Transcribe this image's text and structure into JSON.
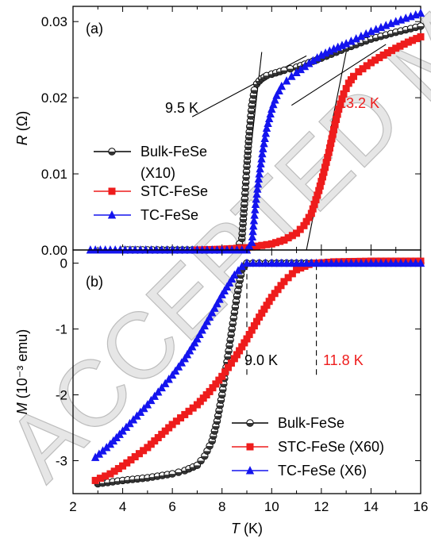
{
  "chart_data": [
    {
      "panel": "(a)",
      "type": "scatter",
      "xlabel": "T (K)",
      "ylabel": "R (Ω)",
      "xlim": [
        2,
        16
      ],
      "ylim": [
        0,
        0.032
      ],
      "xticks": [
        2,
        4,
        6,
        8,
        10,
        12,
        14,
        16
      ],
      "yticks": [
        0.0,
        0.01,
        0.02,
        0.03
      ],
      "ytick_labels": [
        "0.00",
        "0.01",
        "0.02",
        "0.03"
      ],
      "legend_position": "middle-left",
      "series": [
        {
          "name": "Bulk-FeSe",
          "name_line2": "(X10)",
          "color": "#000000",
          "marker": "circle-half",
          "x": [
            4.0,
            5.0,
            6.0,
            7.0,
            8.0,
            8.6,
            8.8,
            8.9,
            9.0,
            9.1,
            9.2,
            9.3,
            9.4,
            9.5,
            9.6,
            9.7,
            9.8,
            10.0,
            10.5,
            11.0,
            11.5,
            12.0,
            13.0,
            14.0,
            15.0,
            16.0
          ],
          "y": [
            0.0,
            0.0,
            0.0,
            0.0,
            0.0,
            0.0001,
            0.0015,
            0.006,
            0.011,
            0.0155,
            0.019,
            0.021,
            0.0218,
            0.0222,
            0.0225,
            0.0227,
            0.0229,
            0.0231,
            0.0236,
            0.024,
            0.0246,
            0.0252,
            0.0265,
            0.0277,
            0.0286,
            0.0294
          ]
        },
        {
          "name": "STC-FeSe",
          "color": "#ee1c1c",
          "marker": "square",
          "x": [
            7.0,
            8.0,
            9.0,
            10.0,
            10.5,
            11.0,
            11.3,
            11.6,
            11.9,
            12.1,
            12.3,
            12.5,
            12.7,
            12.9,
            13.1,
            13.3,
            13.5,
            14.0,
            14.5,
            15.0,
            15.5,
            16.0
          ],
          "y": [
            0.0,
            0.0001,
            0.0003,
            0.0008,
            0.0013,
            0.0022,
            0.0032,
            0.0048,
            0.0078,
            0.0102,
            0.0128,
            0.0158,
            0.0185,
            0.0205,
            0.0219,
            0.0228,
            0.0234,
            0.0246,
            0.0256,
            0.0265,
            0.0273,
            0.028
          ]
        },
        {
          "name": "TC-FeSe",
          "color": "#1414ee",
          "marker": "triangle",
          "x": [
            2.7,
            3.5,
            4.5,
            6.0,
            7.0,
            8.0,
            9.0,
            9.2,
            9.35,
            9.5,
            9.65,
            9.8,
            10.0,
            10.2,
            10.4,
            10.6,
            10.8,
            11.0,
            11.5,
            12.0,
            12.5,
            13.0,
            14.0,
            15.0,
            16.0
          ],
          "y": [
            0.0,
            0.0,
            0.0,
            0.0,
            0.0,
            0.0,
            0.0,
            0.001,
            0.006,
            0.01,
            0.0133,
            0.016,
            0.0185,
            0.0203,
            0.0215,
            0.0222,
            0.0228,
            0.0233,
            0.0245,
            0.0256,
            0.0264,
            0.0271,
            0.0287,
            0.03,
            0.0311
          ]
        }
      ],
      "annotations": [
        {
          "text": "9.5 K",
          "color": "#000000"
        },
        {
          "text": "13.2 K",
          "color": "#ee1c1c"
        }
      ]
    },
    {
      "panel": "(b)",
      "type": "scatter",
      "xlabel": "T (K)",
      "ylabel": "M (10⁻³ emu)",
      "xlim": [
        2,
        16
      ],
      "ylim": [
        -3.5,
        0.2
      ],
      "xticks": [
        2,
        4,
        6,
        8,
        10,
        12,
        14,
        16
      ],
      "yticks": [
        0,
        -1,
        -2,
        -3
      ],
      "ytick_labels": [
        "0",
        "-1",
        "-2",
        "-3"
      ],
      "legend_position": "bottom-right",
      "series": [
        {
          "name": "Bulk-FeSe",
          "color": "#000000",
          "marker": "circle-half",
          "x": [
            3.0,
            4.0,
            5.0,
            6.0,
            6.5,
            7.0,
            7.3,
            7.6,
            7.8,
            8.0,
            8.2,
            8.4,
            8.6,
            8.8,
            9.0,
            9.5,
            10.0,
            12.0,
            14.0,
            16.0
          ],
          "y": [
            -3.35,
            -3.3,
            -3.26,
            -3.2,
            -3.15,
            -3.07,
            -2.93,
            -2.7,
            -2.4,
            -2.0,
            -1.5,
            -1.0,
            -0.5,
            -0.1,
            0.0,
            0.0,
            0.0,
            0.0,
            0.0,
            0.0
          ]
        },
        {
          "name": "STC-FeSe (X60)",
          "color": "#ee1c1c",
          "marker": "square",
          "x": [
            2.9,
            3.5,
            4.0,
            5.0,
            6.0,
            7.0,
            7.5,
            8.0,
            8.5,
            9.0,
            9.5,
            10.0,
            10.5,
            11.0,
            11.5,
            11.8,
            12.5,
            14.0,
            16.0
          ],
          "y": [
            -3.3,
            -3.2,
            -3.08,
            -2.8,
            -2.45,
            -2.15,
            -1.95,
            -1.72,
            -1.45,
            -1.15,
            -0.82,
            -0.52,
            -0.28,
            -0.1,
            -0.02,
            0.0,
            0.02,
            0.03,
            0.03
          ]
        },
        {
          "name": "TC-FeSe (X6)",
          "color": "#1414ee",
          "marker": "triangle",
          "x": [
            2.9,
            3.5,
            4.0,
            5.0,
            6.0,
            6.5,
            7.0,
            7.5,
            8.0,
            8.5,
            8.8,
            9.0,
            9.5,
            10.0,
            11.0,
            12.0,
            14.0,
            16.0
          ],
          "y": [
            -2.95,
            -2.75,
            -2.55,
            -2.15,
            -1.7,
            -1.45,
            -1.15,
            -0.82,
            -0.48,
            -0.18,
            -0.05,
            0.0,
            0.0,
            0.0,
            0.0,
            0.0,
            0.0,
            0.0
          ]
        }
      ],
      "annotations": [
        {
          "text": "9.0 K",
          "color": "#000000"
        },
        {
          "text": "11.8 K",
          "color": "#ee1c1c"
        }
      ],
      "vlines": [
        9.0,
        11.8
      ]
    }
  ],
  "watermark": "ACCEPTED MANUSCRIPT"
}
